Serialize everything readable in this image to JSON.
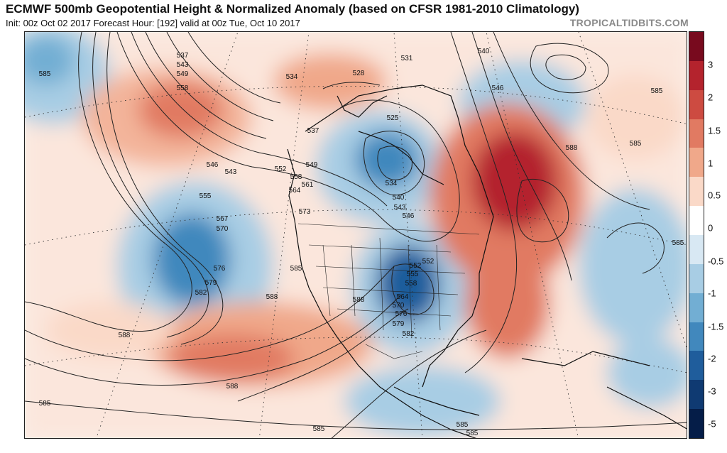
{
  "header": {
    "title": "ECMWF 500mb Geopotential Height & Normalized Anomaly (based on CFSR 1981-2010 Climatology)",
    "subtitle": "Init: 00z Oct 02 2017   Forecast Hour: [192]   valid at 00z Tue, Oct 10 2017",
    "brand": "TROPICALTIDBITS.COM"
  },
  "colorbar": {
    "ticks": [
      "3",
      "2",
      "1.5",
      "1",
      "0.5",
      "0",
      "-0.5",
      "-1",
      "-1.5",
      "-2",
      "-3",
      "-5"
    ],
    "colors": [
      "#780a1e",
      "#b4232d",
      "#cd4b41",
      "#e17a62",
      "#f0a88a",
      "#fad9c8",
      "#ffffff",
      "#d8e8f3",
      "#a8cde4",
      "#72aed3",
      "#4188bd",
      "#1f5d9c",
      "#0f3a72",
      "#051d48"
    ]
  },
  "map": {
    "contour_labels": [
      "537",
      "543",
      "549",
      "558",
      "534",
      "528",
      "531",
      "540",
      "546",
      "585",
      "525",
      "537",
      "549",
      "558",
      "561",
      "564",
      "573",
      "552",
      "546",
      "543",
      "555",
      "567",
      "570",
      "576",
      "579",
      "582",
      "534",
      "540",
      "543",
      "546",
      "552",
      "555",
      "558",
      "564",
      "570",
      "576",
      "579",
      "582",
      "585",
      "588",
      "588",
      "588",
      "588",
      "585",
      "585",
      "585",
      "585",
      "585",
      "552",
      "588",
      "585",
      "585"
    ]
  }
}
